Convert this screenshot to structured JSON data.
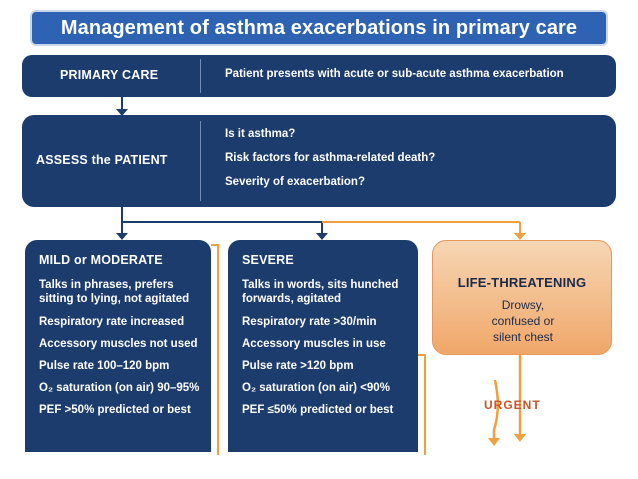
{
  "title": "Management of asthma exacerbations in primary care",
  "primary_care": {
    "label": "PRIMARY  CARE",
    "text": "Patient presents with acute or sub-acute asthma exacerbation"
  },
  "assess": {
    "label": "ASSESS  the PATIENT",
    "questions": [
      "Is it asthma?",
      "Risk factors for asthma-related death?",
      "Severity of exacerbation?"
    ]
  },
  "mild": {
    "title": "MILD or MODERATE",
    "items": [
      "Talks in phrases, prefers sitting to lying, not agitated",
      "Respiratory rate increased",
      "Accessory muscles not used",
      "Pulse rate 100–120 bpm",
      "O₂ saturation (on air) 90–95%",
      "PEF >50% predicted or best"
    ]
  },
  "severe": {
    "title": "SEVERE",
    "items": [
      "Talks in words, sits hunched forwards, agitated",
      "Respiratory rate >30/min",
      "Accessory muscles in use",
      "Pulse rate >120 bpm",
      "O₂ saturation (on air) <90%",
      "PEF ≤50% predicted or best"
    ]
  },
  "life": {
    "title": "LIFE-THREATENING",
    "text": "Drowsy, confused or silent chest"
  },
  "urgent_label": "URGENT",
  "colors": {
    "navy": "#1c3c6e",
    "banner": "#2e63b4",
    "orange": "#f0a769",
    "arrow_orange": "#f0a040"
  }
}
